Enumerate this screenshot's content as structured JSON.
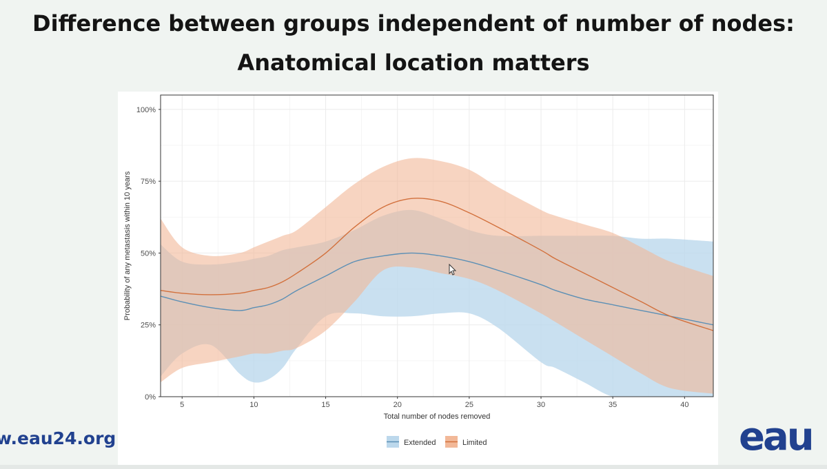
{
  "slide": {
    "title_line1": "Difference between groups independent of number of nodes:",
    "title_line2": "Anatomical location matters",
    "footer_url": "w.eau24.org",
    "logo_text": "eau"
  },
  "colors": {
    "extended": "#5b8fb5",
    "extended_band": "#bcd8ec",
    "limited": "#d2703c",
    "limited_band": "#f2b898",
    "overlap": "#cbb8b3",
    "brand": "#21418f"
  },
  "chart_data": {
    "type": "line",
    "xlabel": "Total number of nodes removed",
    "ylabel": "Probability of any metastasis within 10 years",
    "xlim": [
      3.5,
      42
    ],
    "ylim": [
      0,
      1.05
    ],
    "x_ticks": [
      5,
      10,
      15,
      20,
      25,
      30,
      35,
      40
    ],
    "x_tick_labels": [
      "5",
      "10",
      "15",
      "20",
      "25",
      "30",
      "35",
      "40"
    ],
    "y_ticks": [
      0,
      0.25,
      0.5,
      0.75,
      1.0
    ],
    "y_tick_labels": [
      "0%",
      "25%",
      "50%",
      "75%",
      "100%"
    ],
    "grid": true,
    "legend_position": "bottom",
    "x": [
      3.5,
      5,
      7,
      9,
      10,
      11,
      12,
      13,
      15,
      17,
      19,
      21,
      23,
      25,
      27,
      30,
      31,
      33,
      35,
      37,
      39,
      42
    ],
    "series": [
      {
        "name": "Extended",
        "values": [
          0.35,
          0.33,
          0.31,
          0.3,
          0.31,
          0.32,
          0.34,
          0.37,
          0.42,
          0.47,
          0.49,
          0.5,
          0.49,
          0.47,
          0.44,
          0.39,
          0.37,
          0.34,
          0.32,
          0.3,
          0.28,
          0.25
        ],
        "lower": [
          0.07,
          0.15,
          0.18,
          0.08,
          0.05,
          0.06,
          0.1,
          0.17,
          0.28,
          0.29,
          0.28,
          0.28,
          0.29,
          0.29,
          0.24,
          0.12,
          0.1,
          0.05,
          0.0,
          0.0,
          0.0,
          0.0
        ],
        "upper": [
          0.53,
          0.47,
          0.46,
          0.47,
          0.48,
          0.49,
          0.51,
          0.52,
          0.54,
          0.58,
          0.63,
          0.65,
          0.62,
          0.58,
          0.56,
          0.56,
          0.56,
          0.56,
          0.56,
          0.55,
          0.55,
          0.54
        ]
      },
      {
        "name": "Limited",
        "values": [
          0.37,
          0.36,
          0.355,
          0.36,
          0.37,
          0.38,
          0.4,
          0.43,
          0.5,
          0.59,
          0.66,
          0.69,
          0.68,
          0.64,
          0.59,
          0.51,
          0.48,
          0.43,
          0.38,
          0.33,
          0.28,
          0.23
        ],
        "lower": [
          0.05,
          0.1,
          0.12,
          0.14,
          0.15,
          0.15,
          0.16,
          0.17,
          0.23,
          0.33,
          0.44,
          0.45,
          0.43,
          0.41,
          0.37,
          0.29,
          0.26,
          0.2,
          0.14,
          0.08,
          0.03,
          0.01
        ],
        "upper": [
          0.62,
          0.52,
          0.49,
          0.5,
          0.52,
          0.54,
          0.56,
          0.58,
          0.66,
          0.74,
          0.8,
          0.83,
          0.82,
          0.79,
          0.73,
          0.65,
          0.63,
          0.6,
          0.57,
          0.52,
          0.47,
          0.42
        ]
      }
    ]
  }
}
